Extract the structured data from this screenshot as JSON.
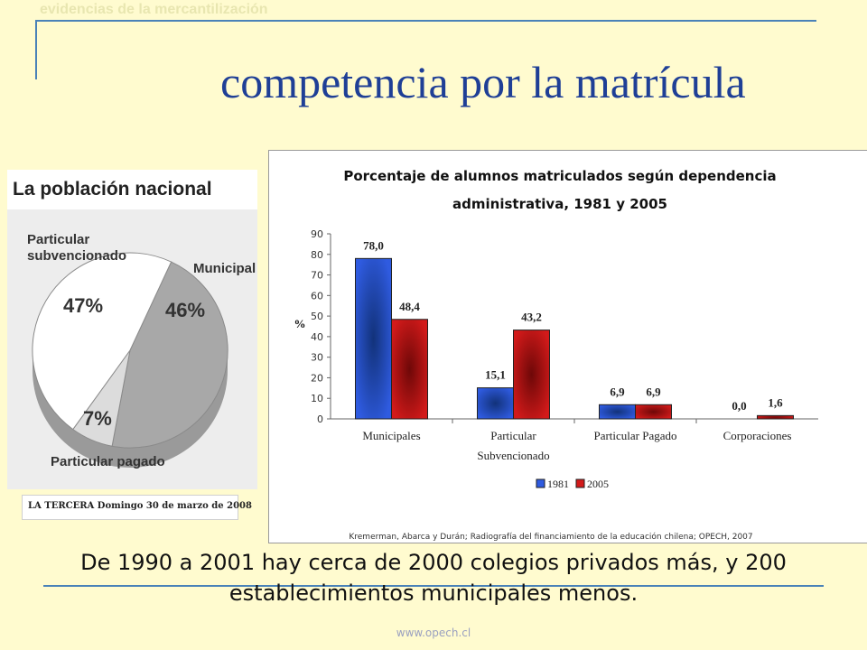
{
  "slide": {
    "kicker": "evidencias de la mercantilización",
    "title": "competencia por la matrícula",
    "bottom_text": "De 1990 a 2001 hay cerca de 2000 colegios privados más, y 200 establecimientos municipales menos.",
    "footer": "www.opech.cl",
    "colors": {
      "title": "#1f3f96",
      "rule": "#4a82b8",
      "background": "#fffbcf"
    }
  },
  "pie_figure": {
    "heading": "La población nacional",
    "source": "LA TERCERA  Domingo 30 de marzo de 2008",
    "slices": [
      {
        "label": "Particular subvencionado",
        "value": 47,
        "display": "47%"
      },
      {
        "label": "Municipal",
        "value": 46,
        "display": "46%"
      },
      {
        "label": "Particular pagado",
        "value": 7,
        "display": "7%"
      }
    ]
  },
  "chart_data": {
    "type": "bar",
    "title": "Porcentaje de alumnos matriculados según dependencia administrativa, 1981 y 2005",
    "ylabel": "%",
    "ylim": [
      0,
      90
    ],
    "yticks": [
      "0",
      "10",
      "20",
      "30",
      "40",
      "50",
      "60",
      "70",
      "80",
      "90"
    ],
    "categories": [
      "Municipales",
      "Particular Subvencionado",
      "Particular Pagado",
      "Corporaciones"
    ],
    "series": [
      {
        "name": "1981",
        "values": [
          78.0,
          15.1,
          6.9,
          0.0
        ],
        "labels": [
          "78,0",
          "15,1",
          "6,9",
          "0,0"
        ],
        "color": "#2f5be0"
      },
      {
        "name": "2005",
        "values": [
          48.4,
          43.2,
          6.9,
          1.6
        ],
        "labels": [
          "48,4",
          "43,2",
          "6,9",
          "1,6"
        ],
        "color": "#d21a1a"
      }
    ],
    "legend_position": "bottom",
    "citation": "Kremerman, Abarca y Durán; Radiografía del financiamiento de la educación chilena; OPECH, 2007"
  }
}
